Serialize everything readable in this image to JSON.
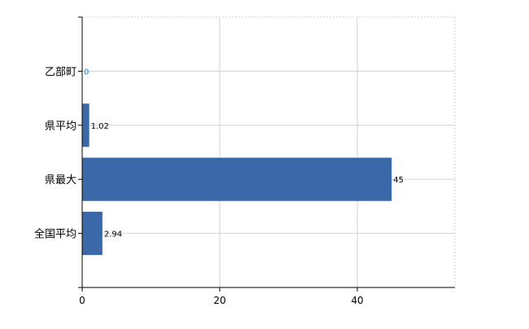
{
  "chart_data": {
    "type": "bar",
    "orientation": "horizontal",
    "categories": [
      "乙部町",
      "県平均",
      "県最大",
      "全国平均"
    ],
    "values": [
      0,
      1.02,
      45,
      2.94
    ],
    "data_labels": [
      "0",
      "1.02",
      "45",
      "2.94"
    ],
    "xlim": [
      0,
      54.2
    ],
    "xticks": [
      0,
      20,
      40
    ],
    "xtick_labels": [
      "0",
      "20",
      "40"
    ],
    "grid": true,
    "bar_color": "#3b68a8",
    "label_color_zero": "#1a7fd0"
  }
}
